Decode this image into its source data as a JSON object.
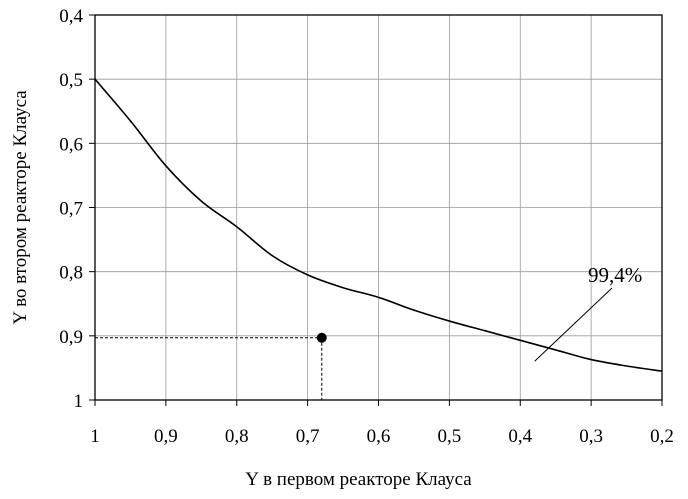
{
  "chart_data": {
    "type": "line",
    "xlabel": "Y в первом реакторе Клауса",
    "ylabel": "Y во втором реакторе Клауса",
    "xlim": [
      1,
      0.2
    ],
    "ylim": [
      0.4,
      1
    ],
    "x_reversed": true,
    "y_reversed": true,
    "grid": true,
    "x_ticks": [
      "1",
      "0,9",
      "0,8",
      "0,7",
      "0,6",
      "0,5",
      "0,4",
      "0,3",
      "0,2"
    ],
    "x_tick_values": [
      1,
      0.9,
      0.8,
      0.7,
      0.6,
      0.5,
      0.4,
      0.3,
      0.2
    ],
    "y_ticks": [
      "0,4",
      "0,5",
      "0,6",
      "0,7",
      "0,8",
      "0,9",
      "1"
    ],
    "y_tick_values": [
      0.4,
      0.5,
      0.6,
      0.7,
      0.8,
      0.9,
      1.0
    ],
    "series": [
      {
        "x": [
          1.0,
          0.95,
          0.9,
          0.85,
          0.8,
          0.75,
          0.7,
          0.65,
          0.6,
          0.55,
          0.5,
          0.45,
          0.4,
          0.35,
          0.3,
          0.25,
          0.2
        ],
        "y": [
          0.5,
          0.565,
          0.635,
          0.69,
          0.73,
          0.775,
          0.805,
          0.825,
          0.84,
          0.86,
          0.877,
          0.892,
          0.907,
          0.922,
          0.937,
          0.947,
          0.955
        ],
        "color": "#000000"
      }
    ],
    "point": {
      "x": 0.68,
      "y": 0.903
    },
    "guide_lines": {
      "x": 0.68,
      "y": 0.903,
      "style": "dashed"
    },
    "annotations": [
      {
        "text": "99,4%",
        "target_x": 0.34,
        "target_y": 0.93
      }
    ]
  }
}
